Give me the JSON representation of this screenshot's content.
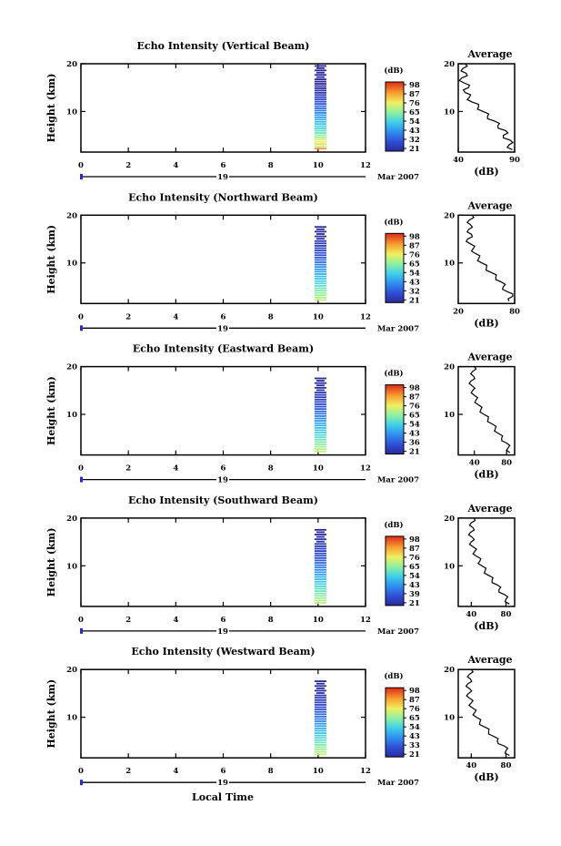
{
  "figure": {
    "xlabel": "Local Time",
    "date_day": "19",
    "date_suffix": "Mar 2007",
    "colorbar_unit": "(dB)",
    "profile_title": "Average",
    "profile_xlabel": "(dB)"
  },
  "chart_data": [
    {
      "type": "heatmap",
      "title": "Echo Intensity (Vertical Beam)",
      "ylabel": "Height (km)",
      "xlim": [
        0,
        12
      ],
      "x_ticks": [
        "0",
        "2",
        "4",
        "6",
        "8",
        "10",
        "12"
      ],
      "y_ticks": [
        "10",
        "20"
      ],
      "ylim": [
        1.5,
        20
      ],
      "colorbar_ticks": [
        "98",
        "87",
        "76",
        "65",
        "54",
        "43",
        "32",
        "21"
      ],
      "column": {
        "time_start": 9.85,
        "time_end": 10.35,
        "height_top": 19.5,
        "values": [
          86,
          70,
          78,
          74,
          72,
          66,
          64,
          60,
          58,
          56,
          54,
          52,
          50,
          48,
          46,
          44,
          42,
          40,
          38,
          36,
          34,
          32,
          30,
          28,
          26,
          25,
          24,
          23,
          22,
          22,
          21,
          21,
          23,
          22,
          22,
          21,
          22,
          21
        ]
      },
      "profile": {
        "xlim": [
          40,
          90
        ],
        "x_ticks": [
          "40",
          "90"
        ],
        "y_ticks": [
          "10",
          "20"
        ],
        "heights": [
          2,
          3,
          4,
          5,
          6,
          7,
          8,
          9,
          10,
          11,
          12,
          13,
          14,
          15,
          16,
          17,
          18,
          19,
          20
        ],
        "values": [
          88,
          85,
          86,
          80,
          82,
          75,
          72,
          66,
          62,
          58,
          52,
          50,
          46,
          49,
          45,
          43,
          47,
          44,
          46
        ]
      }
    },
    {
      "type": "heatmap",
      "title": "Echo Intensity (Northward Beam)",
      "ylabel": "Height (km)",
      "xlim": [
        0,
        12
      ],
      "x_ticks": [
        "0",
        "2",
        "4",
        "6",
        "8",
        "10",
        "12"
      ],
      "y_ticks": [
        "10",
        "20"
      ],
      "ylim": [
        1.5,
        20
      ],
      "colorbar_ticks": [
        "98",
        "87",
        "76",
        "65",
        "54",
        "43",
        "32",
        "21"
      ],
      "column": {
        "time_start": 9.85,
        "time_end": 10.35,
        "height_top": 17.5,
        "values": [
          70,
          68,
          66,
          64,
          62,
          60,
          58,
          56,
          54,
          52,
          50,
          48,
          46,
          44,
          42,
          40,
          38,
          36,
          34,
          32,
          30,
          29,
          28,
          27,
          26,
          25,
          24,
          23,
          22,
          22,
          21,
          21
        ]
      },
      "profile": {
        "xlim": [
          20,
          80
        ],
        "x_ticks": [
          "20",
          "80"
        ],
        "y_ticks": [
          "10",
          "20"
        ],
        "heights": [
          2,
          3,
          4,
          5,
          6,
          7,
          8,
          9,
          10,
          11,
          12,
          13,
          14,
          15,
          16,
          17,
          18,
          19,
          20
        ],
        "values": [
          74,
          78,
          72,
          68,
          66,
          60,
          55,
          50,
          45,
          42,
          38,
          36,
          33,
          30,
          34,
          31,
          33,
          32,
          35
        ]
      }
    },
    {
      "type": "heatmap",
      "title": "Echo Intensity (Eastward Beam)",
      "ylabel": "Height (km)",
      "xlim": [
        0,
        12
      ],
      "x_ticks": [
        "0",
        "2",
        "4",
        "6",
        "8",
        "10",
        "12"
      ],
      "y_ticks": [
        "10",
        "20"
      ],
      "ylim": [
        1.5,
        20
      ],
      "colorbar_ticks": [
        "98",
        "87",
        "76",
        "65",
        "54",
        "43",
        "36",
        "21"
      ],
      "column": {
        "time_start": 9.85,
        "time_end": 10.35,
        "height_top": 17.5,
        "values": [
          70,
          68,
          66,
          64,
          62,
          60,
          58,
          56,
          54,
          52,
          50,
          48,
          46,
          44,
          42,
          40,
          38,
          36,
          34,
          32,
          30,
          29,
          28,
          27,
          26,
          25,
          24,
          23,
          22,
          22,
          21,
          21
        ]
      },
      "profile": {
        "xlim": [
          20,
          90
        ],
        "x_ticks": [
          "40",
          "80"
        ],
        "y_ticks": [
          "10",
          "20"
        ],
        "heights": [
          2,
          3,
          4,
          5,
          6,
          7,
          8,
          9,
          10,
          11,
          12,
          13,
          14,
          15,
          16,
          17,
          18,
          19,
          20
        ],
        "values": [
          84,
          82,
          80,
          74,
          70,
          66,
          62,
          57,
          52,
          48,
          45,
          42,
          40,
          38,
          37,
          36,
          39,
          38,
          40
        ]
      }
    },
    {
      "type": "heatmap",
      "title": "Echo Intensity (Southward Beam)",
      "ylabel": "Height (km)",
      "xlim": [
        0,
        12
      ],
      "x_ticks": [
        "0",
        "2",
        "4",
        "6",
        "8",
        "10",
        "12"
      ],
      "y_ticks": [
        "10",
        "20"
      ],
      "ylim": [
        1.5,
        20
      ],
      "colorbar_ticks": [
        "98",
        "87",
        "76",
        "65",
        "54",
        "43",
        "39",
        "21"
      ],
      "column": {
        "time_start": 9.85,
        "time_end": 10.35,
        "height_top": 17.5,
        "values": [
          70,
          68,
          66,
          64,
          62,
          60,
          58,
          56,
          54,
          52,
          50,
          48,
          46,
          44,
          42,
          40,
          38,
          36,
          34,
          32,
          30,
          29,
          28,
          27,
          26,
          25,
          24,
          23,
          22,
          22,
          21,
          21
        ]
      },
      "profile": {
        "xlim": [
          25,
          90
        ],
        "x_ticks": [
          "40",
          "80"
        ],
        "y_ticks": [
          "10",
          "20"
        ],
        "heights": [
          2,
          3,
          4,
          5,
          6,
          7,
          8,
          9,
          10,
          11,
          12,
          13,
          14,
          15,
          16,
          17,
          18,
          19,
          20
        ],
        "values": [
          84,
          80,
          78,
          72,
          70,
          64,
          60,
          56,
          52,
          50,
          46,
          44,
          42,
          40,
          41,
          39,
          42,
          40,
          43
        ]
      }
    },
    {
      "type": "heatmap",
      "title": "Echo Intensity (Westward Beam)",
      "ylabel": "Height (km)",
      "xlim": [
        0,
        12
      ],
      "x_ticks": [
        "0",
        "2",
        "4",
        "6",
        "8",
        "10",
        "12"
      ],
      "y_ticks": [
        "10",
        "20"
      ],
      "ylim": [
        1.5,
        20
      ],
      "colorbar_ticks": [
        "98",
        "87",
        "76",
        "65",
        "54",
        "43",
        "33",
        "21"
      ],
      "column": {
        "time_start": 9.85,
        "time_end": 10.35,
        "height_top": 17.5,
        "values": [
          70,
          68,
          66,
          64,
          62,
          60,
          58,
          56,
          54,
          52,
          50,
          48,
          46,
          44,
          42,
          40,
          38,
          36,
          34,
          32,
          30,
          29,
          28,
          27,
          26,
          25,
          24,
          23,
          22,
          22,
          21,
          21
        ]
      },
      "profile": {
        "xlim": [
          25,
          90
        ],
        "x_ticks": [
          "40",
          "80"
        ],
        "y_ticks": [
          "10",
          "20"
        ],
        "heights": [
          2,
          3,
          4,
          5,
          6,
          7,
          8,
          9,
          10,
          11,
          12,
          13,
          14,
          15,
          16,
          17,
          18,
          19,
          20
        ],
        "values": [
          84,
          80,
          78,
          70,
          66,
          60,
          55,
          50,
          46,
          44,
          41,
          40,
          38,
          37,
          38,
          36,
          39,
          38,
          40
        ]
      }
    }
  ]
}
